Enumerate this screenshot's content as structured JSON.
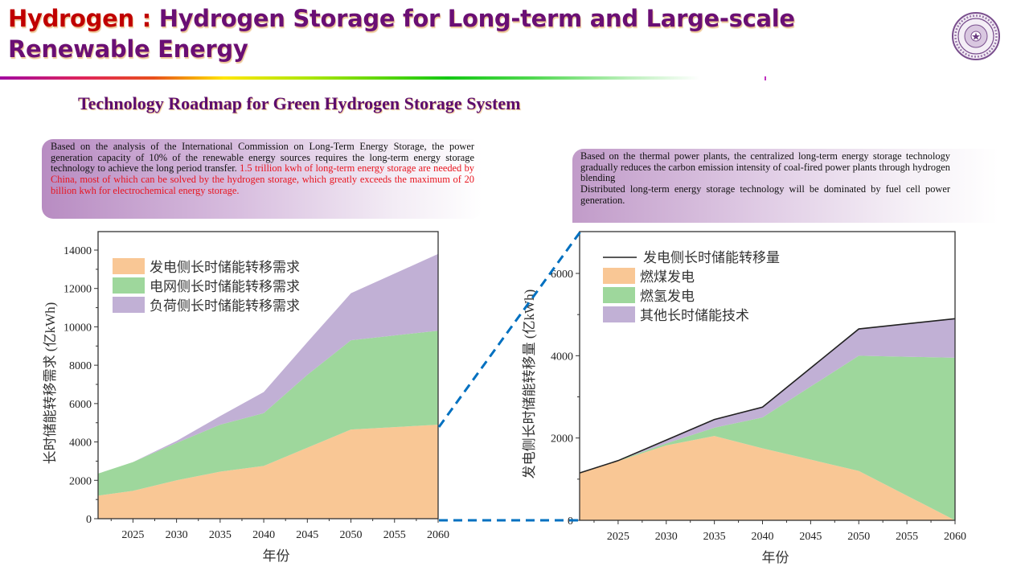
{
  "header": {
    "title_lead": "Hydrogen : ",
    "title_rest": "Hydrogen Storage for Long-term and Large-scale Renewable Energy",
    "logo": "university-seal-icon"
  },
  "subtitle": "Technology Roadmap for Green Hydrogen Storage System",
  "notes": {
    "left": {
      "text_black": "Based on the analysis of the International Commission on Long-Term Energy Storage, the power generation capacity of 10% of the renewable energy sources requires the long-term energy storage technology to achieve the long period transfer. ",
      "text_red": "1.5 trillion kwh of long-term energy storage are needed by China, most of which can be solved by the hydrogen storage, which greatly exceeds the maximum of 20 billion kwh for electrochemical energy storage."
    },
    "right": {
      "line1": "Based on the thermal power plants, the centralized long-term energy storage technology gradually reduces the carbon emission intensity of coal-fired power plants through hydrogen blending",
      "line2": "Distributed long-term energy storage technology will be dominated by fuel cell power generation."
    }
  },
  "colors": {
    "orange": "#f9c795",
    "green": "#9ed79c",
    "purple": "#c1b0d5",
    "connector": "#0070c0",
    "title_purple": "#6a0f74",
    "title_red": "#c00000",
    "highlight_red": "#e8141e"
  },
  "chart_data": [
    {
      "type": "area",
      "stacked": true,
      "title": "",
      "xlabel": "年份",
      "ylabel": "长时储能转移需求 (亿kWh)",
      "x": [
        2021,
        2025,
        2030,
        2035,
        2040,
        2045,
        2050,
        2060
      ],
      "xlim": [
        2021,
        2060
      ],
      "xticks": [
        2025,
        2030,
        2035,
        2040,
        2045,
        2050,
        2055,
        2060
      ],
      "ylim": [
        0,
        15000
      ],
      "yticks": [
        0,
        2000,
        4000,
        6000,
        8000,
        10000,
        12000,
        14000
      ],
      "grid": false,
      "legend": "top-left",
      "series": [
        {
          "name": "发电侧长时储能转移需求",
          "color": "#f9c795",
          "values": [
            1200,
            1450,
            2000,
            2450,
            2750,
            3700,
            4650,
            4900
          ]
        },
        {
          "name": "电网侧长时储能转移需求",
          "color": "#9ed79c",
          "values": [
            1150,
            1500,
            1950,
            2450,
            2750,
            3800,
            4650,
            4900
          ]
        },
        {
          "name": "负荷侧长时储能转移需求",
          "color": "#c1b0d5",
          "values": [
            0,
            0,
            100,
            450,
            1100,
            1700,
            2450,
            4000
          ]
        }
      ],
      "stack_totals": [
        2350,
        2950,
        4050,
        5350,
        6600,
        9200,
        11750,
        13800
      ]
    },
    {
      "type": "area",
      "stacked": true,
      "title": "",
      "xlabel": "年份",
      "ylabel": "发电侧长时储能转移量 (亿kWh)",
      "x": [
        2021,
        2025,
        2030,
        2035,
        2040,
        2050,
        2060
      ],
      "xlim": [
        2021,
        2060
      ],
      "xticks": [
        2025,
        2030,
        2035,
        2040,
        2045,
        2050,
        2055,
        2060
      ],
      "ylim": [
        0,
        6600
      ],
      "yticks": [
        0,
        2000,
        4000,
        6000
      ],
      "grid": false,
      "legend": "top-left",
      "line_series": {
        "name": "发电侧长时储能转移量",
        "color": "#222222",
        "values": [
          1150,
          1450,
          1950,
          2450,
          2750,
          4650,
          4900
        ]
      },
      "series": [
        {
          "name": "燃煤发电",
          "color": "#f9c795",
          "values": [
            1150,
            1440,
            1820,
            2050,
            1750,
            1200,
            0
          ]
        },
        {
          "name": "燃氢发电",
          "color": "#9ed79c",
          "values": [
            0,
            10,
            50,
            200,
            750,
            2800,
            3950
          ]
        },
        {
          "name": "其他长时储能技术",
          "color": "#c1b0d5",
          "values": [
            0,
            0,
            80,
            200,
            250,
            650,
            950
          ]
        }
      ]
    }
  ]
}
